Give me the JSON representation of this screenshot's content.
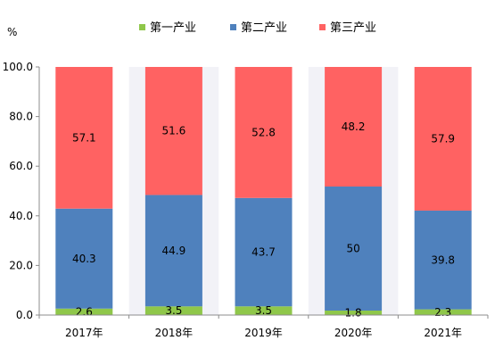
{
  "chart_data": {
    "type": "bar",
    "stacked": true,
    "unit_label": "%",
    "categories": [
      "2017年",
      "2018年",
      "2019年",
      "2020年",
      "2021年"
    ],
    "series": [
      {
        "name": "第一产业",
        "color": "#8fc74a",
        "values": [
          2.6,
          3.5,
          3.5,
          1.8,
          2.3
        ]
      },
      {
        "name": "第二产业",
        "color": "#4f81bd",
        "values": [
          40.3,
          44.9,
          43.7,
          50,
          39.8
        ]
      },
      {
        "name": "第三产业",
        "color": "#ff6262",
        "values": [
          57.1,
          51.6,
          52.8,
          48.2,
          57.9
        ]
      }
    ],
    "ylim": [
      0,
      100
    ],
    "yticks": [
      "0.0",
      "20.0",
      "40.0",
      "60.0",
      "80.0",
      "100.0"
    ],
    "ytick_values": [
      0,
      20,
      40,
      60,
      80,
      100
    ],
    "legend_position": "top",
    "grid": false
  }
}
